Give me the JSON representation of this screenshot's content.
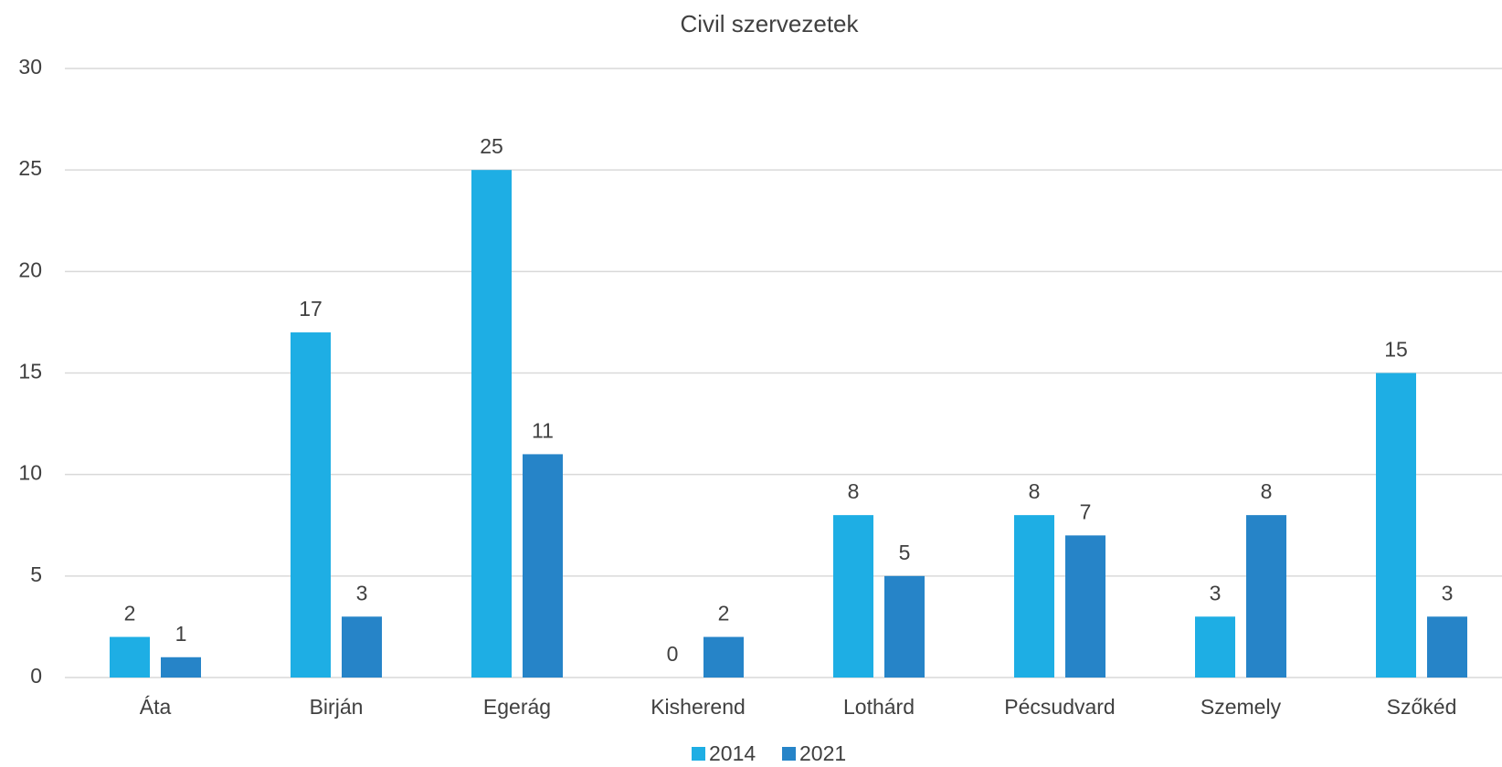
{
  "chart_data": {
    "type": "bar",
    "title": "Civil szervezetek",
    "categories": [
      "Áta",
      "Birján",
      "Egerág",
      "Kisherend",
      "Lothárd",
      "Pécsudvard",
      "Szemely",
      "Szőkéd"
    ],
    "series": [
      {
        "name": "2014",
        "color": "#1eaee4",
        "values": [
          2,
          17,
          25,
          0,
          8,
          8,
          3,
          15
        ]
      },
      {
        "name": "2021",
        "color": "#2684c8",
        "values": [
          1,
          3,
          11,
          2,
          5,
          7,
          8,
          3
        ]
      }
    ],
    "ylim": [
      0,
      30
    ],
    "yticks": [
      0,
      5,
      10,
      15,
      20,
      25,
      30
    ],
    "grid": true,
    "legend": "bottom"
  }
}
